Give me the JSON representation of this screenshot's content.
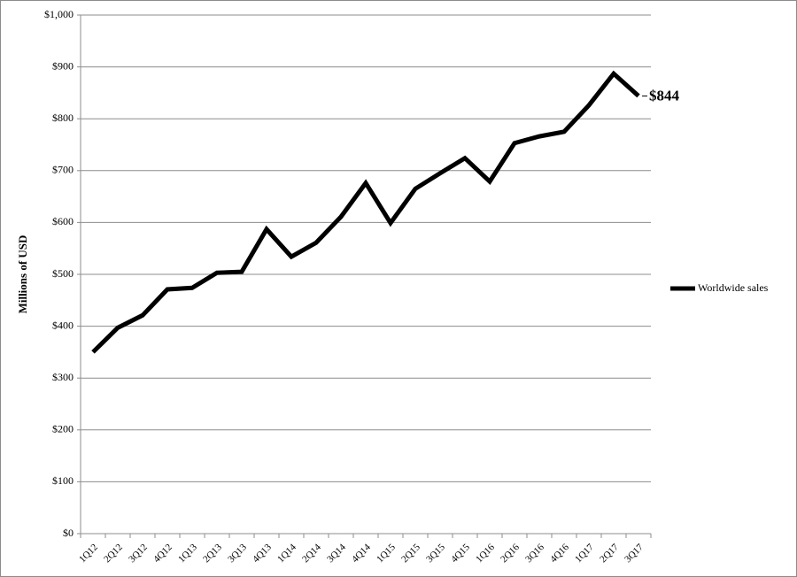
{
  "chart_data": {
    "type": "line",
    "y_label": "Millions of USD",
    "categories": [
      "1Q12",
      "2Q12",
      "3Q12",
      "4Q12",
      "1Q13",
      "2Q13",
      "3Q13",
      "4Q13",
      "1Q14",
      "2Q14",
      "3Q14",
      "4Q14",
      "1Q15",
      "2Q15",
      "3Q15",
      "4Q15",
      "1Q16",
      "2Q16",
      "3Q16",
      "4Q16",
      "1Q17",
      "2Q17",
      "3Q17"
    ],
    "series": [
      {
        "name": "Worldwide sales",
        "color": "#000000",
        "values": [
          350,
          397,
          421,
          471,
          474,
          503,
          505,
          587,
          534,
          561,
          611,
          676,
          599,
          665,
          695,
          724,
          679,
          753,
          766,
          775,
          826,
          887,
          844
        ],
        "value_labels": [
          null,
          null,
          null,
          null,
          null,
          null,
          null,
          null,
          null,
          null,
          null,
          null,
          null,
          null,
          null,
          null,
          null,
          null,
          null,
          null,
          null,
          null,
          "$844"
        ]
      }
    ],
    "ylim": [
      0,
      1000
    ],
    "yticks": [
      {
        "value": 0,
        "label": "$0"
      },
      {
        "value": 100,
        "label": "$100"
      },
      {
        "value": 200,
        "label": "$200"
      },
      {
        "value": 300,
        "label": "$300"
      },
      {
        "value": 400,
        "label": "$400"
      },
      {
        "value": 500,
        "label": "$500"
      },
      {
        "value": 600,
        "label": "$600"
      },
      {
        "value": 700,
        "label": "$700"
      },
      {
        "value": 800,
        "label": "$800"
      },
      {
        "value": 900,
        "label": "$900"
      },
      {
        "value": 1000,
        "label": "$1,000"
      }
    ],
    "grid": true,
    "legend": "right"
  }
}
